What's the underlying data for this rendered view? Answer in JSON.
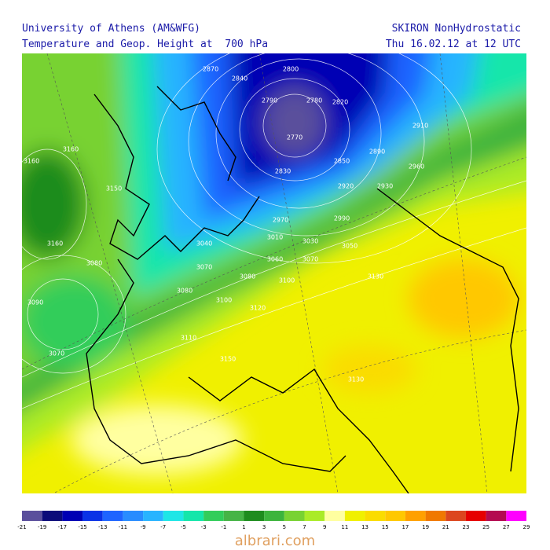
{
  "header": {
    "left_line1": "University of Athens (AM&WFG)",
    "left_line2": "Temperature and Geop. Height at  700 hPa",
    "right_line1": "SKIRON NonHydrostatic",
    "right_line2": "Thu 16.02.12 at 12 UTC"
  },
  "contour_labels": [
    "2800",
    "2840",
    "2870",
    "2790",
    "2780",
    "2820",
    "2770",
    "2830",
    "2850",
    "2890",
    "2910",
    "2960",
    "2920",
    "2930",
    "2970",
    "2990",
    "3010",
    "3030",
    "3050",
    "3060",
    "3070",
    "3080",
    "3100",
    "3130",
    "3100",
    "3110",
    "3150",
    "3160",
    "3080",
    "3070",
    "3090",
    "3130",
    "3160",
    "3160",
    "3150",
    "3040",
    "3070",
    "3080",
    "3120"
  ],
  "colorbar": {
    "labels": [
      "-21",
      "-19",
      "-17",
      "-15",
      "-13",
      "-11",
      "-9",
      "-7",
      "-5",
      "-3",
      "-1",
      "1",
      "3",
      "5",
      "7",
      "9",
      "11",
      "13",
      "15",
      "17",
      "19",
      "21",
      "23",
      "25",
      "27",
      "29"
    ],
    "colors": [
      "#5a4f9c",
      "#0c0c7a",
      "#0000b4",
      "#0a32e6",
      "#1e64ff",
      "#288cff",
      "#28b4ff",
      "#1ee6e6",
      "#14e6aa",
      "#32cd5a",
      "#46b446",
      "#1e8c1e",
      "#3cb43c",
      "#78d232",
      "#aaeb28",
      "#ffffa0",
      "#f0f000",
      "#fadc00",
      "#ffc800",
      "#ffa000",
      "#f07800",
      "#dc461e",
      "#e60000",
      "#b40a50",
      "#ff00ff"
    ]
  },
  "watermark": "albrari.com"
}
